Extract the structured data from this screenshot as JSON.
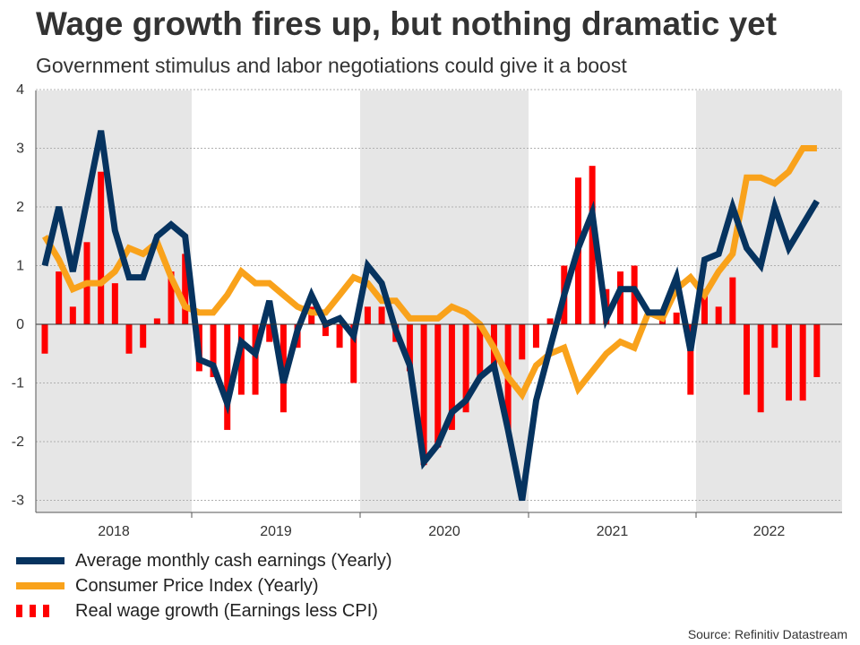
{
  "header": {
    "title": "Wage growth fires up, but nothing dramatic yet",
    "subtitle": "Government stimulus and labor negotiations could give it a boost"
  },
  "legend": {
    "earnings_label": "Average monthly cash earnings (Yearly)",
    "cpi_label": "Consumer Price Index (Yearly)",
    "real_label": "Real wage growth (Earnings less CPI)"
  },
  "footer": {
    "source": "Source: Refinitiv Datastream"
  },
  "colors": {
    "earnings": "#06335f",
    "cpi": "#f9a21b",
    "real": "#ff0000",
    "band": "#e6e6e6",
    "grid": "#b0b0b0"
  },
  "chart_data": {
    "type": "line",
    "title": "Wage growth fires up, but nothing dramatic yet",
    "subtitle": "Government stimulus and labor negotiations could give it a boost",
    "xlabel": "",
    "ylabel": "",
    "ylim": [
      -3.2,
      4
    ],
    "yticks": [
      -3,
      -2,
      -1,
      0,
      1,
      2,
      3,
      4
    ],
    "grid": true,
    "legend_position": "bottom-left",
    "x_start": "2018-01",
    "x_frequency": "monthly",
    "year_labels": [
      "2018",
      "2019",
      "2020",
      "2021",
      "2022"
    ],
    "shaded_years": [
      "2018",
      "2020",
      "2022"
    ],
    "series": [
      {
        "name": "Average monthly cash earnings (Yearly)",
        "kind": "line",
        "values": [
          1.0,
          2.0,
          0.9,
          2.1,
          3.3,
          1.6,
          0.8,
          0.8,
          1.5,
          1.7,
          1.5,
          -0.6,
          -0.7,
          -1.35,
          -0.3,
          -0.5,
          0.4,
          -1.0,
          -0.1,
          0.5,
          0.0,
          0.1,
          -0.2,
          1.0,
          0.7,
          -0.1,
          -0.7,
          -2.35,
          -2.05,
          -1.5,
          -1.3,
          -0.9,
          -0.7,
          -1.8,
          -3.0,
          -1.3,
          -0.4,
          0.5,
          1.3,
          1.9,
          0.1,
          0.6,
          0.6,
          0.2,
          0.2,
          0.8,
          -0.45,
          1.1,
          1.2,
          2.0,
          1.3,
          1.0,
          2.0,
          1.3,
          1.7,
          2.1
        ]
      },
      {
        "name": "Consumer Price Index (Yearly)",
        "kind": "line",
        "values": [
          1.5,
          1.1,
          0.6,
          0.7,
          0.7,
          0.9,
          1.3,
          1.2,
          1.4,
          0.8,
          0.3,
          0.2,
          0.2,
          0.5,
          0.9,
          0.7,
          0.7,
          0.5,
          0.3,
          0.2,
          0.2,
          0.5,
          0.8,
          0.7,
          0.4,
          0.4,
          0.1,
          0.1,
          0.1,
          0.3,
          0.2,
          0.0,
          -0.4,
          -0.9,
          -1.2,
          -0.7,
          -0.5,
          -0.4,
          -1.1,
          -0.8,
          -0.5,
          -0.3,
          -0.4,
          0.2,
          0.1,
          0.6,
          0.8,
          0.5,
          0.9,
          1.2,
          2.5,
          2.5,
          2.4,
          2.6,
          3.0,
          3.0
        ]
      },
      {
        "name": "Real wage growth (Earnings less CPI)",
        "kind": "bar",
        "values": [
          -0.5,
          0.9,
          0.3,
          1.4,
          2.6,
          0.7,
          -0.5,
          -0.4,
          0.1,
          0.9,
          1.2,
          -0.8,
          -0.9,
          -1.8,
          -1.2,
          -1.2,
          -0.3,
          -1.5,
          -0.4,
          0.3,
          -0.2,
          -0.4,
          -1.0,
          0.3,
          0.3,
          -0.3,
          -0.8,
          -2.4,
          -2.1,
          -1.8,
          -1.5,
          -0.9,
          -0.8,
          -1.8,
          -0.6,
          -0.4,
          0.1,
          1.0,
          2.5,
          2.7,
          0.6,
          0.9,
          1.0,
          0.0,
          0.1,
          0.2,
          -1.2,
          0.6,
          0.3,
          0.8,
          -1.2,
          -1.5,
          -0.4,
          -1.3,
          -1.3,
          -0.9
        ]
      }
    ]
  }
}
